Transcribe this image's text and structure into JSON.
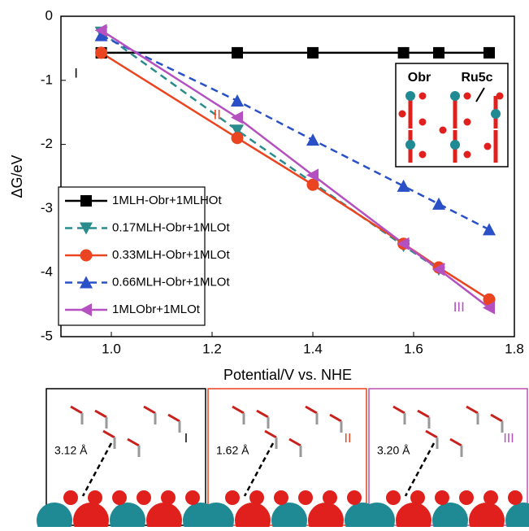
{
  "chart_data": {
    "type": "line",
    "x_label": "Potential/V vs. NHE",
    "y_label": "ΔG/eV",
    "xlim": [
      0.9,
      1.8
    ],
    "ylim": [
      -5,
      0
    ],
    "xticks": [
      {
        "value": 1.0,
        "label": "1.0"
      },
      1.2,
      1.4,
      1.6,
      1.8
    ],
    "yticks": [
      0,
      -1,
      -2,
      -3,
      -4,
      -5
    ],
    "legend": "left",
    "series": [
      {
        "name": "1MLH-Obr+1MLHOt",
        "color": "#000000",
        "marker": "square",
        "dashed": false,
        "x": [
          0.98,
          1.25,
          1.4,
          1.58,
          1.65,
          1.75
        ],
        "values": [
          -0.57,
          -0.57,
          -0.57,
          -0.57,
          -0.57,
          -0.57
        ]
      },
      {
        "name": "0.17MLH-Obr+1MLOt",
        "color": "#2a8c8c",
        "marker": "triangle-down",
        "dashed": true,
        "x": [
          0.98,
          1.25,
          1.58,
          1.65
        ],
        "values": [
          -0.25,
          -1.78,
          -3.58,
          -3.95
        ]
      },
      {
        "name": "0.33MLH-Obr+1MLOt",
        "color": "#ea4420",
        "marker": "circle",
        "dashed": false,
        "x": [
          0.98,
          1.25,
          1.4,
          1.58,
          1.65,
          1.75
        ],
        "values": [
          -0.57,
          -1.9,
          -2.63,
          -3.55,
          -3.92,
          -4.42
        ]
      },
      {
        "name": "0.66MLH-Obr+1MLOt",
        "color": "#2a50c8",
        "marker": "triangle-up",
        "dashed": true,
        "x": [
          0.98,
          1.25,
          1.4,
          1.58,
          1.65,
          1.75
        ],
        "values": [
          -0.3,
          -1.32,
          -1.93,
          -2.65,
          -2.93,
          -3.33
        ]
      },
      {
        "name": "1MLObr+1MLOt",
        "color": "#b450c0",
        "marker": "triangle-left",
        "dashed": false,
        "x": [
          0.98,
          1.25,
          1.4,
          1.58,
          1.65,
          1.75
        ],
        "values": [
          -0.22,
          -1.58,
          -2.48,
          -3.55,
          -3.95,
          -4.55
        ]
      }
    ],
    "annotations": [
      "I",
      "II",
      "III"
    ],
    "inset_labels": [
      "Obr",
      "Ru5c"
    ]
  },
  "panels": [
    {
      "distance": "3.12 Å",
      "label": "I"
    },
    {
      "distance": "1.62 Å",
      "label": "II"
    },
    {
      "distance": "3.20 Å",
      "label": "III"
    }
  ]
}
